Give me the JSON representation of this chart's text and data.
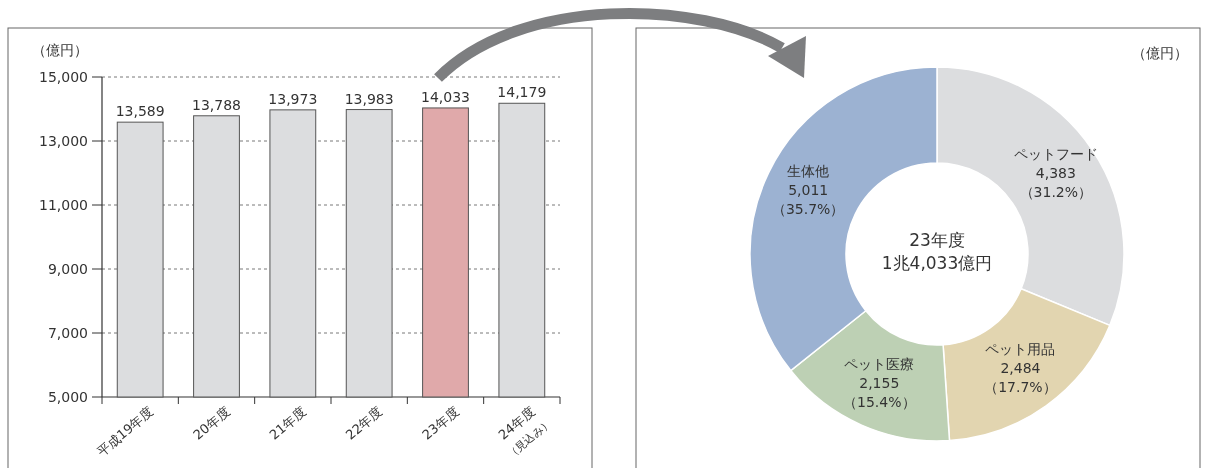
{
  "chart_data": [
    {
      "type": "bar",
      "ylabel": "（億円）",
      "categories": [
        "平成19年度",
        "20年度",
        "21年度",
        "22年度",
        "23年度",
        "24年度$_{（見込み）}$"
      ],
      "values": [
        13589,
        13788,
        13973,
        13983,
        14033,
        14179
      ],
      "colors": [
        "#dcdddf",
        "#dcdddf",
        "#dcdddf",
        "#dcdddf",
        "#e0a9aa",
        "#dcdddf"
      ],
      "ylim": [
        5000,
        15000
      ],
      "yticks": [
        {
          "value": 5000,
          "label": "5,000"
        },
        {
          "value": 7000,
          "label": "7,000"
        },
        {
          "value": 9000,
          "label": "9,000"
        },
        {
          "value": 11000,
          "label": "11,000"
        },
        {
          "value": 13000,
          "label": "13,000"
        },
        {
          "value": 15000,
          "label": "15,000"
        }
      ],
      "grid": "y",
      "value_labels": [
        "13,589",
        "13,788",
        "13,973",
        "13,983",
        "14,033",
        "14,179"
      ]
    },
    {
      "type": "donut",
      "categories": [
        "ペットフード",
        "ペット用品",
        "ペット医療",
        "生体他"
      ],
      "values": [
        4383,
        2484,
        2155,
        5011
      ],
      "value_labels": [
        "4,383\n（31.2%）",
        "2,484\n（17.7%）",
        "2,155\n（15.4%）",
        "5,011\n（35.7%）"
      ],
      "colors": [
        "#dcdddf",
        "#e2d5b0",
        "#bdd0b4",
        "#9cb2d2"
      ],
      "annotations": [
        "23年度\n1兆4,033億円",
        "（億円）"
      ]
    }
  ]
}
